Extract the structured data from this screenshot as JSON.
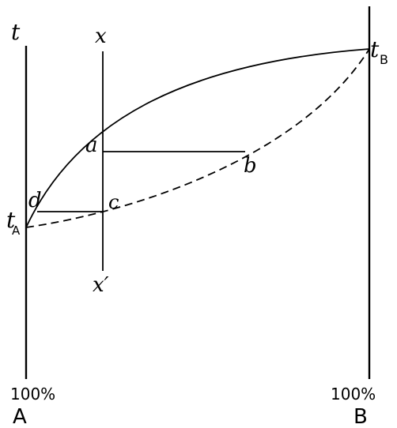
{
  "labels": {
    "t": "t",
    "x_top": "x",
    "x_bottom": "x′",
    "t_A": "t",
    "t_A_sub": "A",
    "t_B": "t",
    "t_B_sub": "B",
    "a": "a",
    "b": "b",
    "c": "c",
    "d": "d",
    "pct_left": "100%",
    "pct_right": "100%",
    "comp_A": "A",
    "comp_B": "B"
  }
}
